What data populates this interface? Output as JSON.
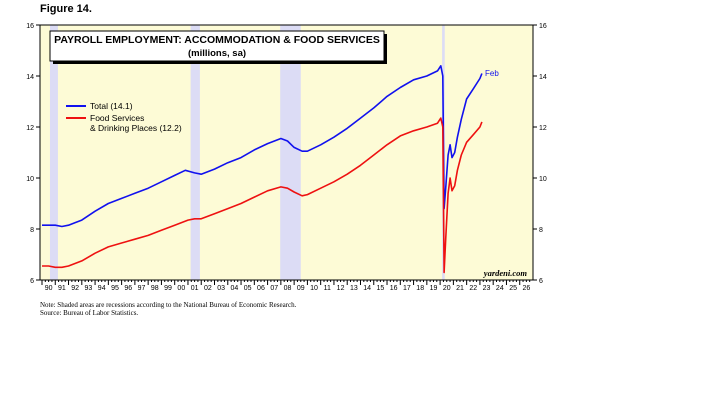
{
  "figure_label": "Figure 14.",
  "chart_data": {
    "type": "line",
    "title": "PAYROLL EMPLOYMENT: ACCOMMODATION & FOOD SERVICES",
    "subtitle": "(millions, sa)",
    "ylim": [
      6,
      16
    ],
    "yticks": [
      6,
      8,
      10,
      12,
      14,
      16
    ],
    "xlim": [
      1989.85,
      2027.0
    ],
    "x_tick_labels": [
      "90",
      "91",
      "92",
      "93",
      "94",
      "95",
      "96",
      "97",
      "98",
      "99",
      "00",
      "01",
      "02",
      "03",
      "04",
      "05",
      "06",
      "07",
      "08",
      "09",
      "10",
      "11",
      "12",
      "13",
      "14",
      "15",
      "16",
      "17",
      "18",
      "19",
      "20",
      "21",
      "22",
      "23",
      "24",
      "25",
      "26"
    ],
    "recessions": [
      [
        1990.6,
        1991.2
      ],
      [
        2001.2,
        2001.9
      ],
      [
        2007.95,
        2009.5
      ],
      [
        2020.15,
        2020.35
      ]
    ],
    "end_label": "Feb",
    "watermark": "yardeni.com",
    "legend_placement": "left",
    "colors": {
      "total": "#1111ee",
      "food": "#ee1111",
      "background": "#fdfbd6",
      "recession": "#dcdcf5"
    },
    "series": [
      {
        "name": "Total (14.1)",
        "key": "total",
        "points": [
          [
            1990.0,
            8.15
          ],
          [
            1990.5,
            8.15
          ],
          [
            1991.0,
            8.15
          ],
          [
            1991.5,
            8.1
          ],
          [
            1992.0,
            8.15
          ],
          [
            1992.5,
            8.25
          ],
          [
            1993.0,
            8.35
          ],
          [
            1994.0,
            8.7
          ],
          [
            1995.0,
            9.0
          ],
          [
            1996.0,
            9.2
          ],
          [
            1997.0,
            9.4
          ],
          [
            1998.0,
            9.6
          ],
          [
            1999.0,
            9.85
          ],
          [
            2000.0,
            10.1
          ],
          [
            2000.8,
            10.3
          ],
          [
            2001.5,
            10.2
          ],
          [
            2002.0,
            10.15
          ],
          [
            2003.0,
            10.35
          ],
          [
            2004.0,
            10.6
          ],
          [
            2005.0,
            10.8
          ],
          [
            2006.0,
            11.1
          ],
          [
            2007.0,
            11.35
          ],
          [
            2008.0,
            11.55
          ],
          [
            2008.5,
            11.45
          ],
          [
            2009.0,
            11.2
          ],
          [
            2009.6,
            11.05
          ],
          [
            2010.0,
            11.05
          ],
          [
            2011.0,
            11.3
          ],
          [
            2012.0,
            11.6
          ],
          [
            2013.0,
            11.95
          ],
          [
            2014.0,
            12.35
          ],
          [
            2015.0,
            12.75
          ],
          [
            2016.0,
            13.2
          ],
          [
            2017.0,
            13.55
          ],
          [
            2018.0,
            13.85
          ],
          [
            2019.0,
            14.0
          ],
          [
            2019.8,
            14.2
          ],
          [
            2020.05,
            14.4
          ],
          [
            2020.2,
            14.0
          ],
          [
            2020.3,
            8.8
          ],
          [
            2020.42,
            9.6
          ],
          [
            2020.6,
            10.9
          ],
          [
            2020.75,
            11.3
          ],
          [
            2020.9,
            10.8
          ],
          [
            2021.1,
            11.0
          ],
          [
            2021.3,
            11.6
          ],
          [
            2021.6,
            12.3
          ],
          [
            2022.0,
            13.1
          ],
          [
            2022.5,
            13.5
          ],
          [
            2023.0,
            13.9
          ],
          [
            2023.15,
            14.1
          ]
        ]
      },
      {
        "name": "Food Services & Drinking Places (12.2)",
        "key": "food",
        "legend_lines": [
          "Food Services",
          "& Drinking Places (12.2)"
        ],
        "points": [
          [
            1990.0,
            6.55
          ],
          [
            1990.5,
            6.55
          ],
          [
            1991.0,
            6.5
          ],
          [
            1991.5,
            6.5
          ],
          [
            1992.0,
            6.55
          ],
          [
            1993.0,
            6.75
          ],
          [
            1994.0,
            7.05
          ],
          [
            1995.0,
            7.3
          ],
          [
            1996.0,
            7.45
          ],
          [
            1997.0,
            7.6
          ],
          [
            1998.0,
            7.75
          ],
          [
            1999.0,
            7.95
          ],
          [
            2000.0,
            8.15
          ],
          [
            2001.0,
            8.35
          ],
          [
            2001.5,
            8.4
          ],
          [
            2002.0,
            8.4
          ],
          [
            2003.0,
            8.6
          ],
          [
            2004.0,
            8.8
          ],
          [
            2005.0,
            9.0
          ],
          [
            2006.0,
            9.25
          ],
          [
            2007.0,
            9.5
          ],
          [
            2008.0,
            9.65
          ],
          [
            2008.5,
            9.6
          ],
          [
            2009.0,
            9.45
          ],
          [
            2009.6,
            9.3
          ],
          [
            2010.0,
            9.35
          ],
          [
            2011.0,
            9.6
          ],
          [
            2012.0,
            9.85
          ],
          [
            2013.0,
            10.15
          ],
          [
            2014.0,
            10.5
          ],
          [
            2015.0,
            10.9
          ],
          [
            2016.0,
            11.3
          ],
          [
            2017.0,
            11.65
          ],
          [
            2018.0,
            11.85
          ],
          [
            2019.0,
            12.0
          ],
          [
            2019.8,
            12.15
          ],
          [
            2020.05,
            12.35
          ],
          [
            2020.2,
            12.0
          ],
          [
            2020.3,
            6.3
          ],
          [
            2020.42,
            7.6
          ],
          [
            2020.6,
            9.4
          ],
          [
            2020.75,
            10.0
          ],
          [
            2020.9,
            9.5
          ],
          [
            2021.1,
            9.7
          ],
          [
            2021.3,
            10.3
          ],
          [
            2021.6,
            10.9
          ],
          [
            2022.0,
            11.4
          ],
          [
            2022.5,
            11.7
          ],
          [
            2023.0,
            12.0
          ],
          [
            2023.15,
            12.2
          ]
        ]
      }
    ],
    "notes": [
      "Note: Shaded areas are recessions according to the National Bureau of Economic Research.",
      "Source: Bureau of Labor Statistics."
    ]
  }
}
